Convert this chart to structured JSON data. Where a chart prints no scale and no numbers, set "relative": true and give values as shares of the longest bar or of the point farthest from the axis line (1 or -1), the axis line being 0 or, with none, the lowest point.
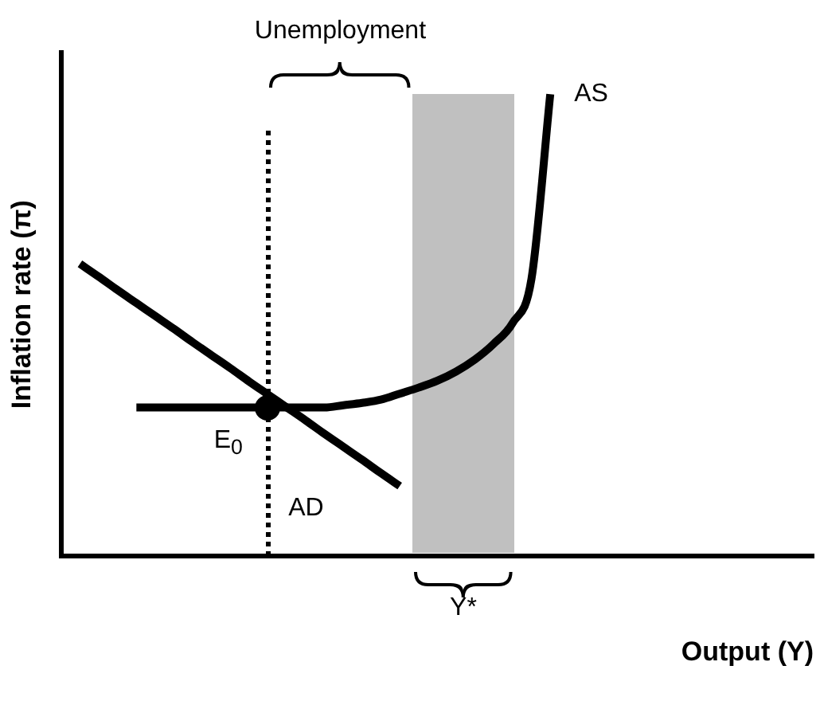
{
  "chart_data": {
    "type": "line",
    "relative": true,
    "xlabel": "Output (Y)",
    "ylabel": "Inflation rate (π)",
    "categories": [
      null,
      null,
      null,
      null,
      null,
      null,
      null,
      null,
      null,
      null,
      null,
      null,
      null,
      null,
      null,
      null,
      null,
      null,
      null,
      null,
      null,
      null,
      null,
      null,
      null,
      null,
      null,
      null,
      null,
      null,
      null,
      null,
      null,
      null,
      null,
      null,
      null,
      null,
      null,
      null,
      null
    ],
    "grid": false,
    "legend": false,
    "marker": "none",
    "series": [
      {
        "name": "AD",
        "color": "#000000",
        "values": [
          null,
          0.633,
          0.605,
          0.576,
          0.548,
          0.52,
          0.492,
          0.463,
          0.435,
          0.407,
          0.378,
          0.35,
          0.322,
          0.294,
          0.265,
          0.237,
          0.209,
          0.18,
          0.152,
          null,
          null,
          null,
          null,
          null,
          null,
          null,
          null,
          null,
          null,
          null,
          null,
          null,
          null,
          null,
          null,
          null,
          null,
          null,
          null,
          null,
          null
        ]
      },
      {
        "name": "AS",
        "color": "#000000",
        "values": [
          null,
          null,
          null,
          null,
          0.322,
          0.322,
          0.322,
          0.322,
          0.322,
          0.322,
          0.322,
          0.322,
          0.322,
          0.322,
          0.322,
          0.327,
          0.332,
          0.339,
          0.352,
          0.365,
          0.38,
          0.4,
          0.426,
          0.46,
          0.505,
          0.6,
          1.0,
          null,
          null,
          null,
          null,
          null,
          null,
          null,
          null,
          null,
          null,
          null,
          null,
          null,
          null
        ]
      }
    ],
    "annotations": [
      "Unemployment",
      "E$_{0}$",
      "Y*"
    ]
  }
}
